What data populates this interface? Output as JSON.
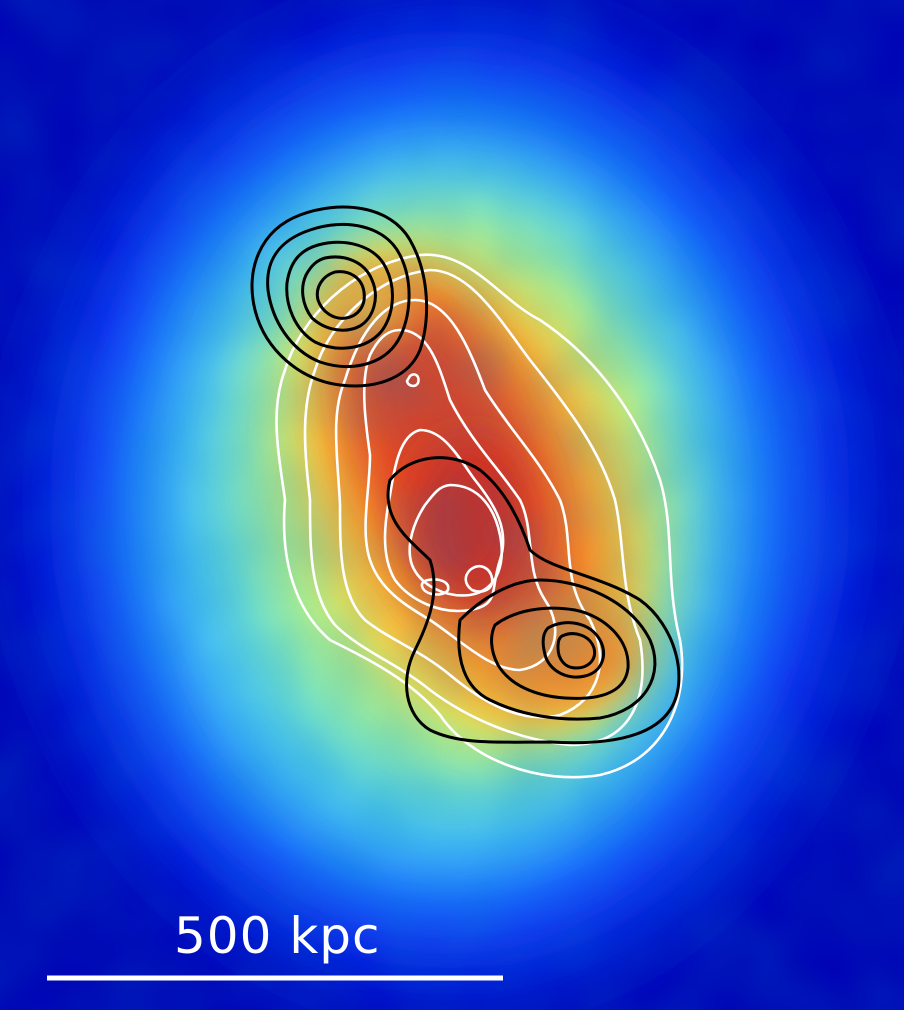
{
  "scale_bar": {
    "label": "500 kpc"
  },
  "colors": {
    "background": "#0000b4",
    "colormap": [
      "#00008c",
      "#0a28ff",
      "#1478ff",
      "#5adcf0",
      "#96f0a0",
      "#ffee50",
      "#ffb028",
      "#ff6a1e",
      "#dc2a1c",
      "#c8281e"
    ],
    "x_ray_contours": "#ffffff",
    "lensing_contours": "#000000",
    "scale_bar": "#ffffff"
  },
  "contours": {
    "white": {
      "description_hidden": true
    },
    "black": {
      "description_hidden": true
    }
  }
}
